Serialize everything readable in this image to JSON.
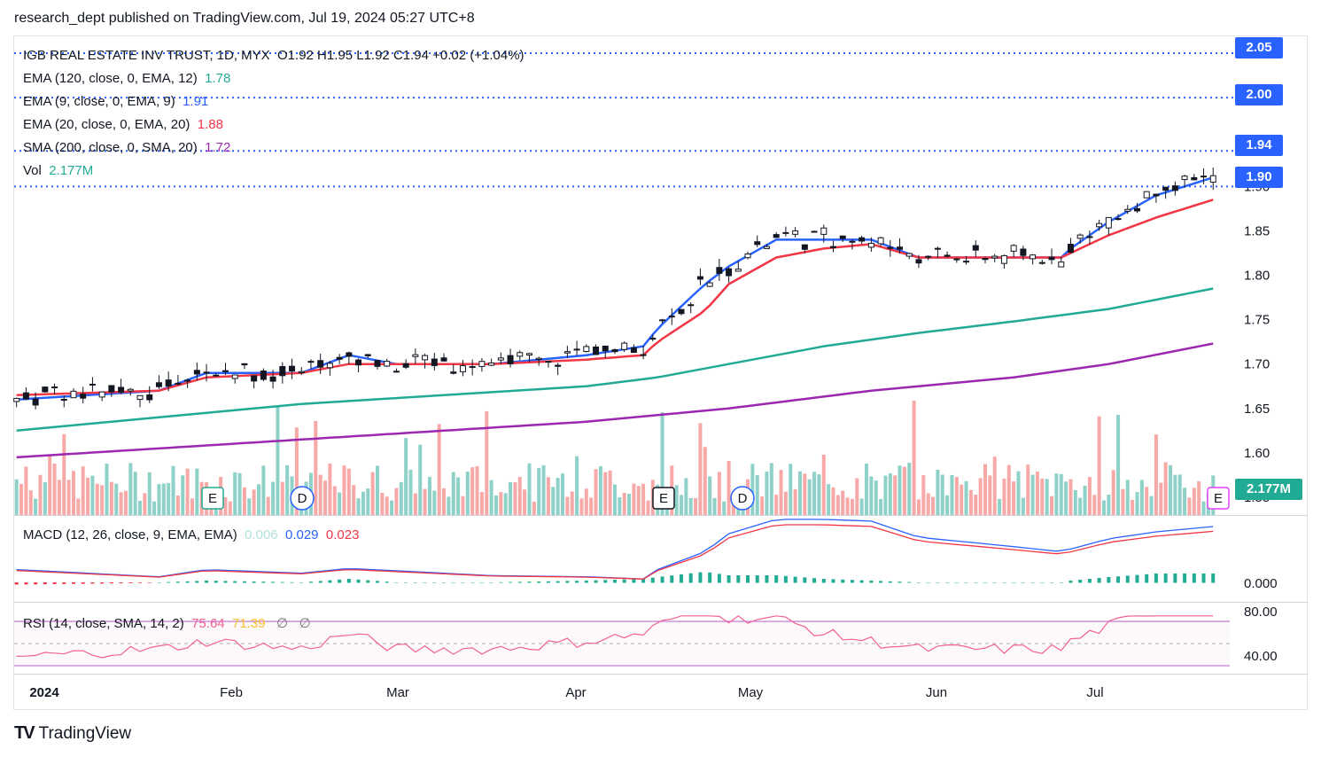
{
  "header": {
    "text": "research_dept published on TradingView.com, Jul 19, 2024 05:27 UTC+8"
  },
  "legend": {
    "symbol": "IGB REAL ESTATE INV TRUST, 1D, MYX",
    "ohlc": "O1.92  H1.95  L1.92  C1.94  +0.02 (+1.04%)",
    "ema120_label": "EMA (120, close, 0, EMA, 12)",
    "ema120_value": "1.78",
    "ema9_label": "EMA (9, close, 0, EMA, 9)",
    "ema9_value": "1.91",
    "ema20_label": "EMA (20, close, 0, EMA, 20)",
    "ema20_value": "1.88",
    "sma200_label": "SMA (200, close, 0, SMA, 20)",
    "sma200_value": "1.72",
    "vol_label": "Vol",
    "vol_value": "2.177M",
    "macd_label": "MACD (12, 26, close, 9, EMA, EMA)",
    "macd_hist": "0.006",
    "macd_line": "0.029",
    "macd_signal": "0.023",
    "rsi_label": "RSI (14, close, SMA, 14, 2)",
    "rsi_value": "75.64",
    "rsi_ma": "71.39",
    "rsi_extra1": "∅",
    "rsi_extra2": "∅"
  },
  "price_badges": {
    "b205": "2.05",
    "b200": "2.00",
    "b194": "1.94",
    "b190": "1.90",
    "vol": "2.177M"
  },
  "footer": {
    "logo_icon": "tradingview-logo-icon",
    "brand": "TradingView"
  },
  "colors": {
    "up": "#26a69a",
    "down": "#ef5350",
    "ema9": "#2962ff",
    "ema20": "#f23645",
    "ema120": "#22ab94",
    "sma200": "#9c27b0",
    "rsi": "#f06292",
    "badge_blue": "#2962ff"
  },
  "chart_data": {
    "type": "candlestick",
    "y_axis_ticks": [
      "2.05",
      "2.00",
      "1.95",
      "1.90",
      "1.85",
      "1.80",
      "1.75",
      "1.70",
      "1.65",
      "1.60",
      "1.55"
    ],
    "ylim": [
      1.53,
      2.07
    ],
    "x_axis_labels": [
      "2024",
      "Feb",
      "Mar",
      "Apr",
      "May",
      "Jun",
      "Jul"
    ],
    "horizontal_levels": [
      2.05,
      2.0,
      1.94,
      1.9
    ],
    "event_markers": [
      {
        "label": "E",
        "type": "earnings"
      },
      {
        "label": "D",
        "type": "dividend"
      },
      {
        "label": "E",
        "type": "earnings"
      },
      {
        "label": "D",
        "type": "dividend"
      },
      {
        "label": "E",
        "type": "earnings-upcoming"
      }
    ],
    "ma_points": {
      "ema9": [
        [
          0,
          1.66
        ],
        [
          30,
          1.67
        ],
        [
          40,
          1.69
        ],
        [
          60,
          1.69
        ],
        [
          70,
          1.71
        ],
        [
          80,
          1.7
        ],
        [
          100,
          1.7
        ],
        [
          120,
          1.71
        ],
        [
          132,
          1.72
        ],
        [
          135,
          1.74
        ],
        [
          145,
          1.79
        ],
        [
          150,
          1.81
        ],
        [
          160,
          1.84
        ],
        [
          170,
          1.84
        ],
        [
          180,
          1.84
        ],
        [
          190,
          1.82
        ],
        [
          200,
          1.82
        ],
        [
          210,
          1.82
        ],
        [
          220,
          1.82
        ],
        [
          222,
          1.83
        ],
        [
          230,
          1.86
        ],
        [
          240,
          1.89
        ],
        [
          252,
          1.91
        ]
      ],
      "ema20": [
        [
          0,
          1.665
        ],
        [
          30,
          1.67
        ],
        [
          40,
          1.685
        ],
        [
          60,
          1.69
        ],
        [
          70,
          1.7
        ],
        [
          80,
          1.7
        ],
        [
          100,
          1.7
        ],
        [
          120,
          1.705
        ],
        [
          132,
          1.71
        ],
        [
          135,
          1.725
        ],
        [
          145,
          1.76
        ],
        [
          150,
          1.79
        ],
        [
          160,
          1.82
        ],
        [
          170,
          1.83
        ],
        [
          180,
          1.835
        ],
        [
          190,
          1.82
        ],
        [
          200,
          1.82
        ],
        [
          210,
          1.82
        ],
        [
          220,
          1.82
        ],
        [
          222,
          1.825
        ],
        [
          230,
          1.845
        ],
        [
          240,
          1.865
        ],
        [
          252,
          1.885
        ]
      ],
      "ema120": [
        [
          0,
          1.625
        ],
        [
          30,
          1.64
        ],
        [
          60,
          1.655
        ],
        [
          90,
          1.665
        ],
        [
          120,
          1.675
        ],
        [
          135,
          1.685
        ],
        [
          150,
          1.7
        ],
        [
          170,
          1.72
        ],
        [
          190,
          1.735
        ],
        [
          210,
          1.748
        ],
        [
          230,
          1.762
        ],
        [
          252,
          1.785
        ]
      ],
      "sma200": [
        [
          0,
          1.595
        ],
        [
          30,
          1.605
        ],
        [
          60,
          1.615
        ],
        [
          90,
          1.625
        ],
        [
          120,
          1.635
        ],
        [
          150,
          1.65
        ],
        [
          180,
          1.67
        ],
        [
          210,
          1.685
        ],
        [
          230,
          1.7
        ],
        [
          252,
          1.723
        ]
      ]
    },
    "rsi_levels": [
      "80.00",
      "40.00"
    ],
    "macd_levels": [
      "0.000"
    ]
  }
}
